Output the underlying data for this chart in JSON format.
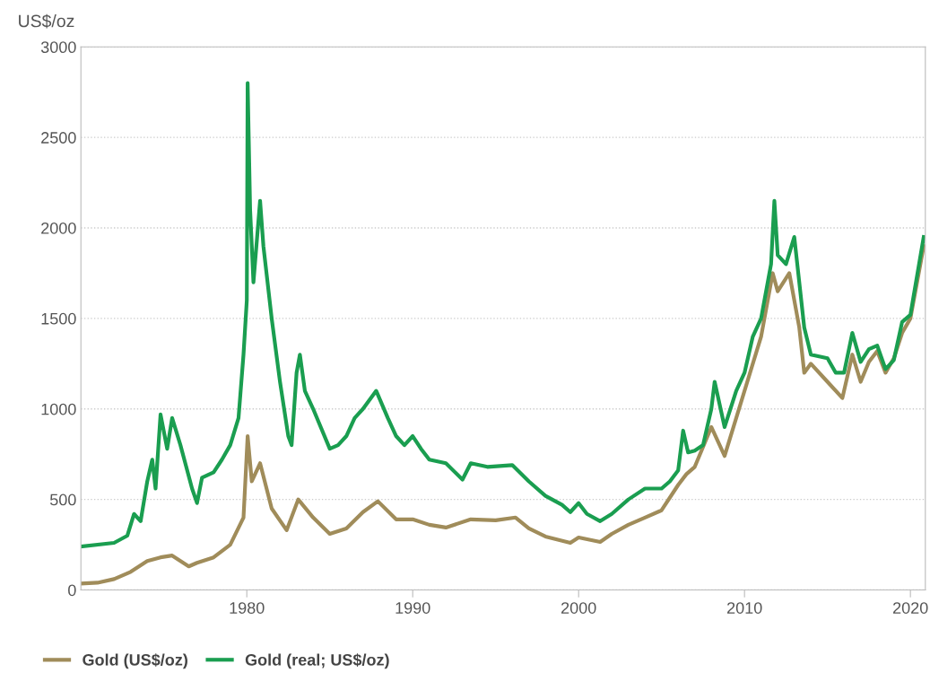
{
  "chart_data": {
    "type": "line",
    "ylabel": "US$/oz",
    "xlim": [
      1970,
      2020.9
    ],
    "ylim": [
      0,
      3000
    ],
    "xticks": [
      1980,
      1990,
      2000,
      2010,
      2020
    ],
    "yticks": [
      0,
      500,
      1000,
      1500,
      2000,
      2500,
      3000
    ],
    "grid": "y",
    "legend": "bottom",
    "line_style": "solid",
    "marker": "none",
    "series": [
      {
        "name": "Gold (US$/oz)",
        "color": "#a08c5a",
        "x": [
          1970,
          1971,
          1972,
          1973,
          1974,
          1974.8,
          1975.5,
          1976.5,
          1977,
          1978,
          1979,
          1979.8,
          1980.05,
          1980.3,
          1980.8,
          1981.5,
          1982.4,
          1983.1,
          1984,
          1985,
          1986,
          1987,
          1987.9,
          1989,
          1990,
          1991,
          1992,
          1993.5,
          1995,
          1996.2,
          1997,
          1998,
          1999.5,
          2000,
          2001.3,
          2002,
          2003,
          2004,
          2005,
          2006,
          2006.5,
          2007,
          2008,
          2008.8,
          2009.5,
          2010,
          2010.5,
          2011,
          2011.7,
          2012,
          2012.7,
          2013.3,
          2013.6,
          2014,
          2015,
          2015.9,
          2016.5,
          2017,
          2017.5,
          2018,
          2018.5,
          2019,
          2019.5,
          2020,
          2020.8
        ],
        "values": [
          35,
          40,
          60,
          100,
          160,
          180,
          190,
          130,
          150,
          180,
          250,
          400,
          850,
          600,
          700,
          450,
          330,
          500,
          400,
          310,
          340,
          430,
          490,
          390,
          390,
          360,
          345,
          390,
          385,
          400,
          340,
          295,
          260,
          290,
          265,
          310,
          360,
          400,
          440,
          580,
          640,
          680,
          900,
          740,
          950,
          1100,
          1250,
          1400,
          1750,
          1650,
          1750,
          1450,
          1200,
          1250,
          1150,
          1060,
          1300,
          1150,
          1260,
          1320,
          1200,
          1280,
          1420,
          1500,
          1900
        ]
      },
      {
        "name": "Gold (real; US$/oz)",
        "color": "#1a9e50",
        "x": [
          1970,
          1972,
          1972.8,
          1973.2,
          1973.6,
          1974,
          1974.3,
          1974.5,
          1974.8,
          1975.2,
          1975.5,
          1976,
          1976.7,
          1977,
          1977.3,
          1978,
          1978.5,
          1979,
          1979.5,
          1979.8,
          1980,
          1980.05,
          1980.2,
          1980.4,
          1980.8,
          1981,
          1981.5,
          1982,
          1982.5,
          1982.7,
          1983,
          1983.2,
          1983.5,
          1984,
          1985,
          1985.5,
          1986,
          1986.5,
          1987,
          1987.8,
          1988.5,
          1989,
          1989.5,
          1990,
          1990.5,
          1991,
          1992,
          1993,
          1993.5,
          1994.5,
          1996,
          1997,
          1998,
          1999,
          1999.5,
          2000,
          2000.5,
          2001.3,
          2002,
          2003,
          2004,
          2005,
          2005.5,
          2006,
          2006.3,
          2006.6,
          2007,
          2007.5,
          2008,
          2008.2,
          2008.8,
          2009.5,
          2010,
          2010.5,
          2011,
          2011.6,
          2011.8,
          2012,
          2012.5,
          2013,
          2013.3,
          2013.6,
          2014,
          2015,
          2015.5,
          2016,
          2016.5,
          2017,
          2017.5,
          2018,
          2018.5,
          2019,
          2019.5,
          2020,
          2020.8
        ],
        "values": [
          240,
          260,
          300,
          420,
          380,
          600,
          720,
          560,
          970,
          780,
          950,
          800,
          560,
          480,
          620,
          650,
          720,
          800,
          950,
          1300,
          1600,
          2800,
          2100,
          1700,
          2150,
          1900,
          1500,
          1150,
          850,
          800,
          1200,
          1300,
          1100,
          1000,
          780,
          800,
          850,
          950,
          1000,
          1100,
          950,
          850,
          800,
          850,
          780,
          720,
          700,
          610,
          700,
          680,
          690,
          600,
          520,
          470,
          430,
          480,
          420,
          380,
          420,
          500,
          560,
          560,
          600,
          660,
          880,
          760,
          770,
          800,
          1000,
          1150,
          900,
          1100,
          1200,
          1400,
          1500,
          1800,
          2150,
          1850,
          1800,
          1950,
          1700,
          1450,
          1300,
          1280,
          1200,
          1200,
          1420,
          1260,
          1330,
          1350,
          1220,
          1270,
          1480,
          1520,
          1950
        ]
      }
    ]
  }
}
